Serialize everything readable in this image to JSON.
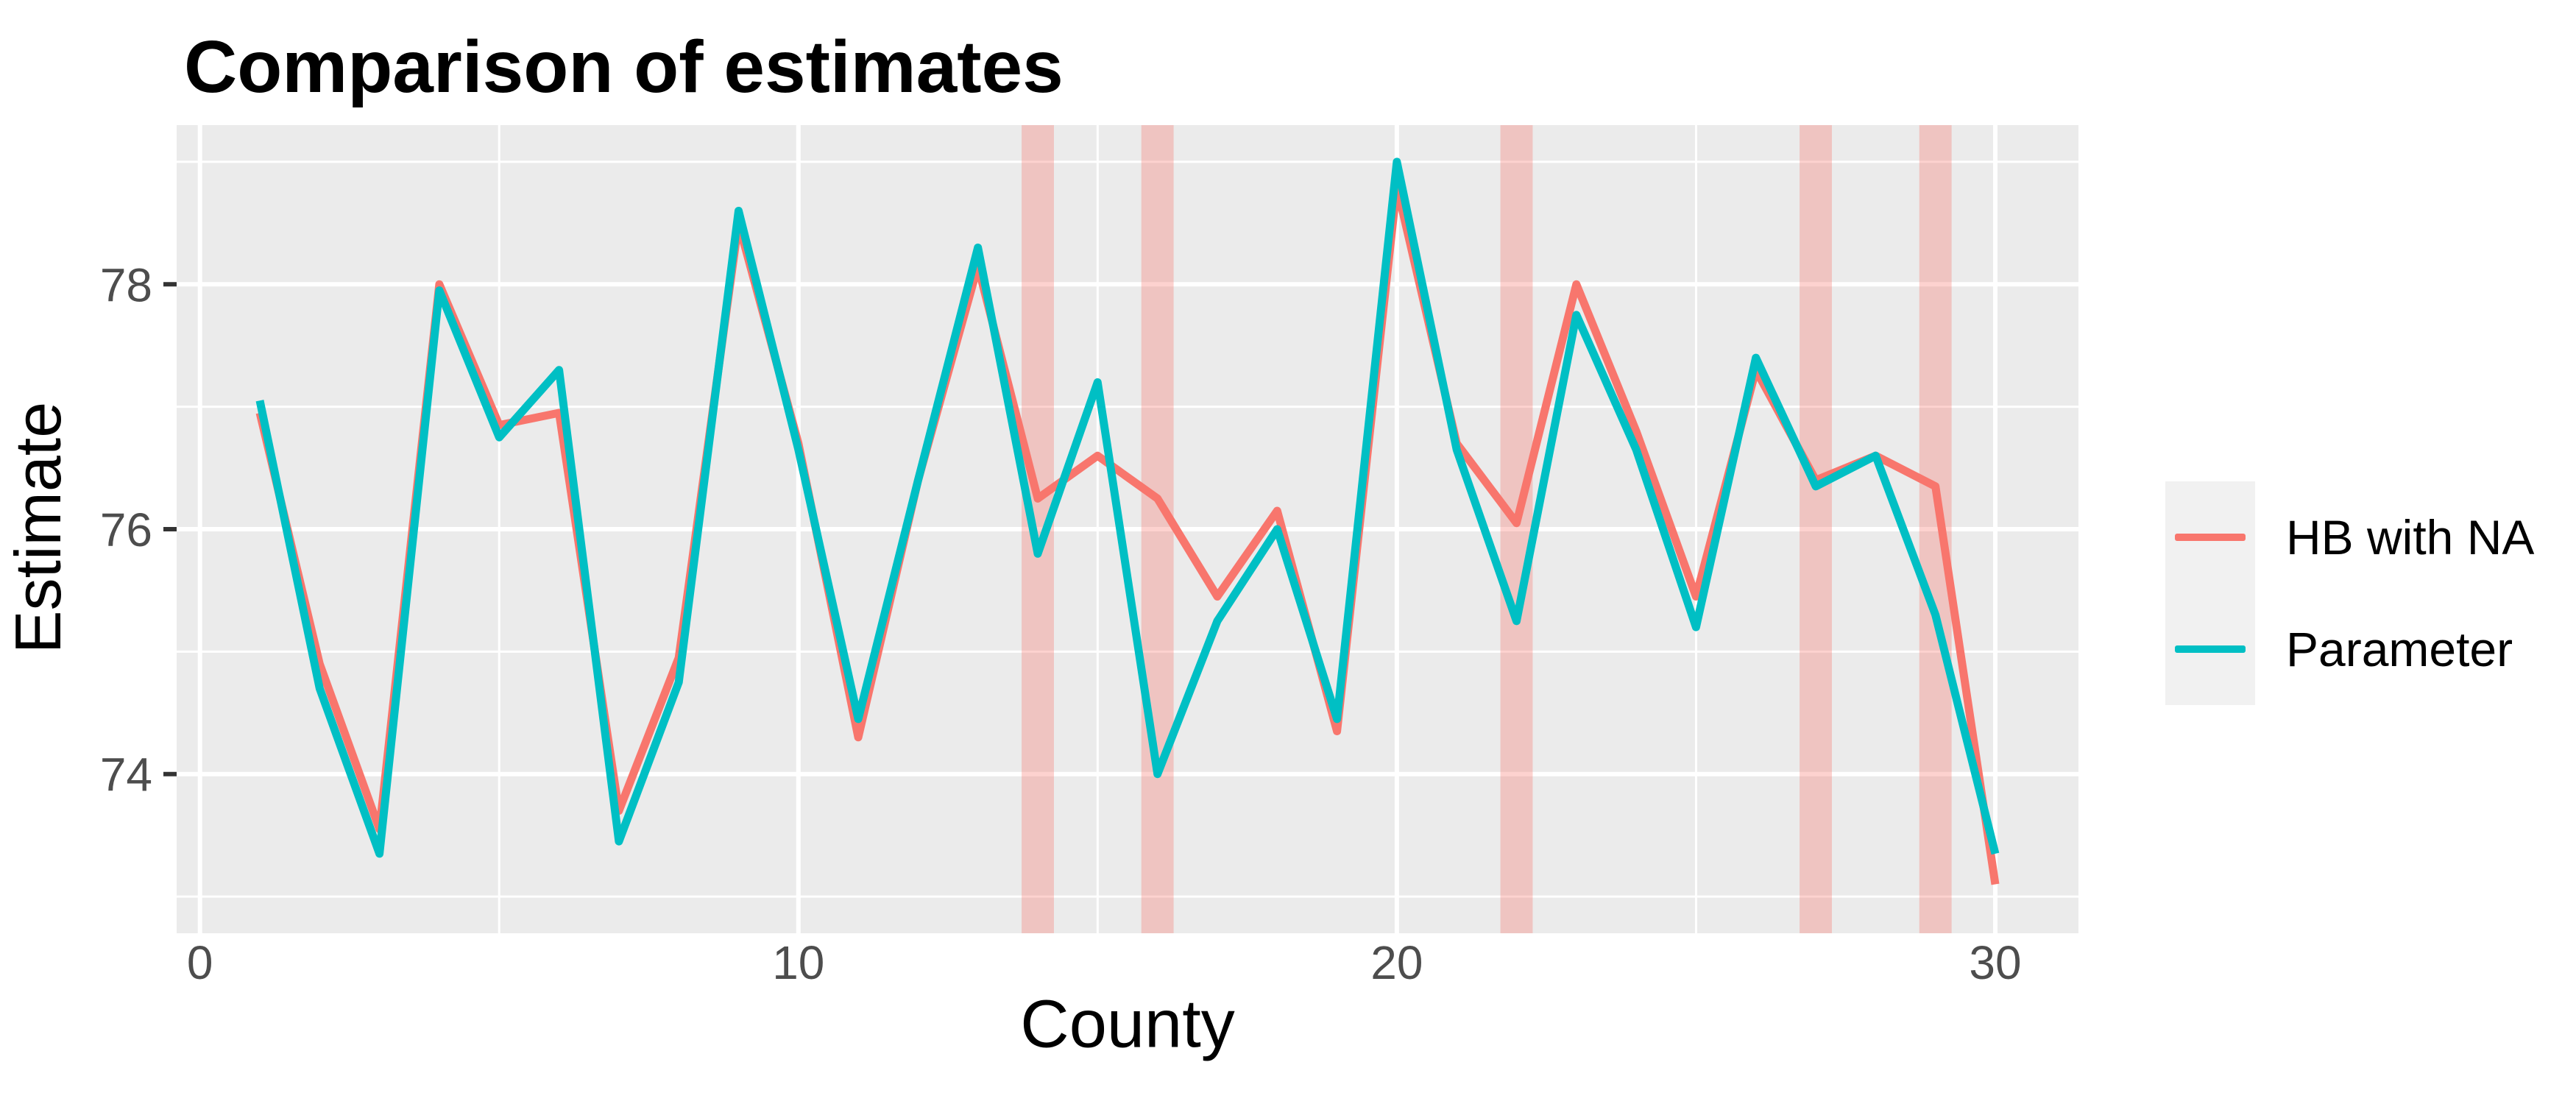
{
  "chart_data": {
    "type": "line",
    "title": "Comparison of estimates",
    "xlabel": "County",
    "ylabel": "Estimate",
    "x": [
      1,
      2,
      3,
      4,
      5,
      6,
      7,
      8,
      9,
      10,
      11,
      12,
      13,
      14,
      15,
      16,
      17,
      18,
      19,
      20,
      21,
      22,
      23,
      24,
      25,
      26,
      27,
      28,
      29,
      30
    ],
    "series": [
      {
        "name": "HB with NA",
        "color": "#F8766D",
        "values": [
          76.95,
          74.9,
          73.55,
          78.0,
          76.85,
          76.95,
          73.7,
          74.95,
          78.5,
          76.7,
          74.3,
          76.4,
          78.15,
          76.25,
          76.6,
          76.25,
          75.45,
          76.15,
          74.35,
          78.8,
          76.7,
          76.05,
          78.0,
          76.8,
          75.45,
          77.3,
          76.4,
          76.6,
          76.35,
          73.1
        ]
      },
      {
        "name": "Parameter",
        "color": "#00BFC4",
        "values": [
          77.05,
          74.7,
          73.35,
          77.95,
          76.75,
          77.3,
          73.45,
          74.75,
          78.6,
          76.65,
          74.45,
          76.4,
          78.3,
          75.8,
          77.2,
          74.0,
          75.25,
          76.0,
          74.45,
          79.0,
          76.65,
          75.25,
          77.75,
          76.65,
          75.2,
          77.4,
          76.35,
          76.6,
          75.3,
          73.35
        ]
      }
    ],
    "na_band_counties": [
      14,
      16,
      22,
      27,
      29
    ],
    "na_band_half_width": 0.27,
    "na_band_color": "#F8766D",
    "na_band_opacity": 0.33,
    "x_ticks": [
      0,
      10,
      20,
      30
    ],
    "y_ticks": [
      74,
      76,
      78
    ],
    "x_minor": [
      5,
      15,
      25
    ],
    "y_minor": [
      73,
      75,
      77,
      79
    ],
    "xlim": [
      -0.39,
      31.39
    ],
    "ylim": [
      72.7,
      79.3
    ],
    "grid": true,
    "panel_bg": "#EBEBEB",
    "grid_color": "#FFFFFF",
    "tick_text_color": "#4D4D4D",
    "legend_position": "right"
  }
}
